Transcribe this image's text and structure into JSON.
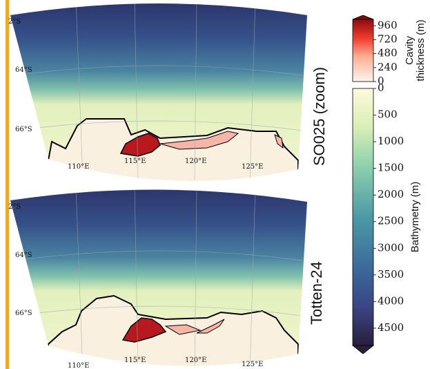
{
  "panels": [
    {
      "title": "SO025 (zoom)",
      "lat_labels": [
        "2°S",
        "64°S",
        "66°S"
      ],
      "lon_labels": [
        "110°E",
        "115°E",
        "120°E",
        "125°E"
      ]
    },
    {
      "title": "Totten-24",
      "lat_labels": [
        "2°S",
        "64°S",
        "66°S"
      ],
      "lon_labels": [
        "110°E",
        "115°E",
        "120°E",
        "125°E"
      ]
    }
  ],
  "colorbars": [
    {
      "label": [
        "Cavity",
        "thickness (m)"
      ],
      "lim": [
        0,
        1070
      ],
      "ticks": [
        0,
        240,
        480,
        720,
        960
      ]
    },
    {
      "label": "Bathymetry (m)",
      "lim": [
        0,
        4825
      ],
      "ticks": [
        0,
        500,
        1000,
        1500,
        2000,
        2500,
        3000,
        3500,
        4000,
        4500
      ]
    }
  ]
}
